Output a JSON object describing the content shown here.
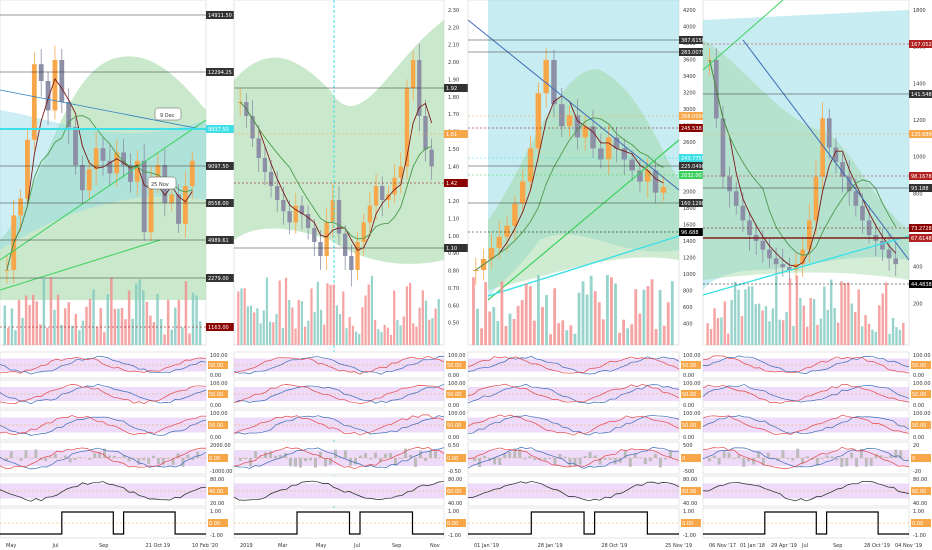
{
  "colors": {
    "up": "#f7a74a",
    "down": "#8c8fa6",
    "vol_up": "#7fc9bf",
    "vol_down": "#f28c8c",
    "cloud_green": "#9fd7a3",
    "cloud_blue": "#8fd9e6",
    "osc_band": "#e2c2f5"
  },
  "chart_data": [
    {
      "type": "candlestick",
      "price_labels": [
        "14911.50",
        "12294.25",
        "9937.50",
        "9097.50",
        "8558.00",
        "4989.61",
        "2279.00",
        "1163.00"
      ],
      "callouts": [
        "9 Dec",
        "25 Nov"
      ],
      "time_labels": [
        "May",
        "Jul",
        "Sep",
        "21 Oct 19",
        "10 Feb '20"
      ],
      "close": [
        6.5,
        7.8,
        8.2,
        9.6,
        11.4,
        11.0,
        10.3,
        11.5,
        10.5,
        9.9,
        9.0,
        8.4,
        8.9,
        9.4,
        9.1,
        8.8,
        9.3,
        9.0,
        8.6,
        9.1,
        7.4,
        8.6,
        9.0,
        8.1,
        8.3,
        7.6,
        8.5,
        9.1
      ]
    },
    {
      "type": "candlestick",
      "axis_labels": [
        "2.30",
        "2.20",
        "2.10",
        "2.00",
        "1.90",
        "1.80",
        "1.70",
        "1.60",
        "1.50",
        "1.40",
        "1.30",
        "1.20",
        "1.10",
        "1.00",
        "0.90",
        "0.80",
        "0.70",
        "0.60",
        "0.50"
      ],
      "price_labels": [
        "1.92",
        "1.61",
        "1.42",
        "1.10"
      ],
      "time_labels": [
        "2019",
        "Mar",
        "May",
        "Jul",
        "Sep",
        "Nov"
      ],
      "close": [
        1.85,
        1.8,
        1.72,
        1.65,
        1.6,
        1.55,
        1.5,
        1.46,
        1.42,
        1.48,
        1.45,
        1.4,
        1.35,
        1.3,
        1.42,
        1.5,
        1.38,
        1.3,
        1.25,
        1.35,
        1.42,
        1.48,
        1.55,
        1.5,
        1.52,
        1.58,
        1.62,
        1.9,
        2.0,
        1.8,
        1.68,
        1.62
      ]
    },
    {
      "type": "candlestick",
      "axis_labels": [
        "4200",
        "4000",
        "3800",
        "3600",
        "3400",
        "3200",
        "3000",
        "2800",
        "2600",
        "2400",
        "2200",
        "2000",
        "1800",
        "1600",
        "1400",
        "1200",
        "1000",
        "800",
        "600",
        "400"
      ],
      "price_labels": [
        "387.6158",
        "283.0079",
        "268.0000",
        "245.538",
        "243.7750",
        "225.0498",
        "2032.00",
        "160.1298",
        "96.688"
      ],
      "time_labels": [
        "01 Jan '19",
        "28 Jan '19",
        "28 Oct '19",
        "25 Nov '19"
      ],
      "close": [
        1.3,
        1.4,
        1.5,
        1.6,
        1.7,
        1.9,
        2.1,
        2.4,
        2.9,
        3.2,
        2.8,
        2.6,
        2.7,
        2.5,
        2.6,
        2.4,
        2.3,
        2.5,
        2.4,
        2.3,
        2.2,
        2.1,
        2.2,
        2.0,
        2.05
      ]
    },
    {
      "type": "candlestick",
      "axis_labels": [
        "1800",
        "1600",
        "1400",
        "1200",
        "1000",
        "800",
        "600",
        "400",
        "200"
      ],
      "price_labels": [
        "167.0528",
        "141.5485",
        "130.6890",
        "98.1678",
        "93.188",
        "73.2728",
        "67.6148",
        "44.4838"
      ],
      "time_labels": [
        "06 Nov '17",
        "01 Jan '18",
        "29 Apr '19",
        "Jul",
        "Sep",
        "28 Oct '19",
        "04 Nov '19"
      ],
      "close": [
        140,
        120,
        100,
        95,
        90,
        85,
        80,
        78,
        75,
        72,
        70,
        69,
        68,
        70,
        75,
        85,
        100,
        120,
        110,
        105,
        100,
        95,
        90,
        85,
        80,
        78,
        75,
        72,
        70
      ]
    }
  ],
  "oscillator_labels": {
    "p1": [
      "100.00",
      "50.00",
      "0.00",
      "100.00",
      "50.00",
      "0.00",
      "100.00",
      "50.00",
      "0.00",
      "2000.00",
      "0.00",
      "-1000.00",
      "80.00",
      "40.00",
      "20.00",
      "1.00",
      "0.00",
      "-1.00"
    ],
    "p2": [
      "100.00",
      "50.00",
      "0.00",
      "100.00",
      "50.00",
      "0.00",
      "100.00",
      "50.00",
      "0.00",
      "0.50",
      "0.00",
      "-0.50",
      "80.00",
      "60.00",
      "40.00",
      "1.00",
      "0.00",
      "-1.00"
    ],
    "p3": [
      "100.00",
      "50.00",
      "0.00",
      "100.00",
      "50.00",
      "0.00",
      "100.00",
      "50.00",
      "0.00",
      "500",
      "0",
      "-500",
      "80.00",
      "60.00",
      "40.00",
      "1.00",
      "0.00",
      "-1.00"
    ],
    "p4": [
      "100.00",
      "50.00",
      "0.00",
      "100.00",
      "50.00",
      "0.00",
      "100.00",
      "50.00",
      "0.00",
      "20",
      "0",
      "-20",
      "80.00",
      "60.00",
      "40.00",
      "1.00",
      "0.00",
      "-1.00"
    ]
  }
}
